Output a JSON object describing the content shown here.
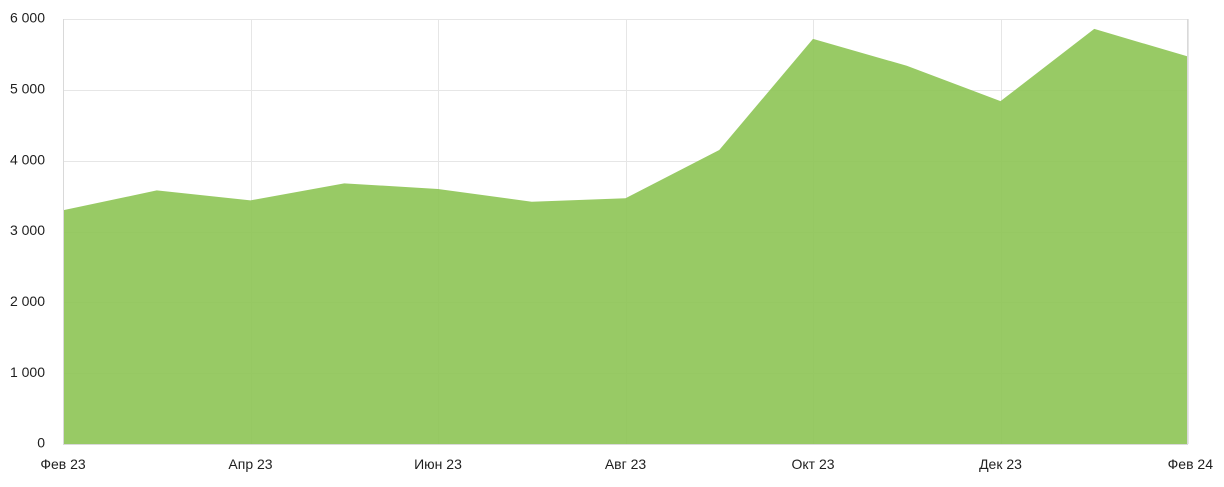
{
  "chart_data": {
    "type": "area",
    "x": [
      "Фев 23",
      "Мар 23",
      "Апр 23",
      "Май 23",
      "Июн 23",
      "Июл 23",
      "Авг 23",
      "Сен 23",
      "Окт 23",
      "Ноя 23",
      "Дек 23",
      "Янв 24",
      "Фев 24"
    ],
    "x_tick_labels": [
      "Фев 23",
      "Апр 23",
      "Июн 23",
      "Авг 23",
      "Окт 23",
      "Дек 23",
      "Фев 24"
    ],
    "series": [
      {
        "values": [
          3300,
          3580,
          3440,
          3680,
          3600,
          3420,
          3470,
          4150,
          5720,
          5340,
          4840,
          5860,
          5470
        ],
        "color": "#8dc454"
      }
    ],
    "ylim": [
      0,
      6000
    ],
    "y_ticks": [
      0,
      1000,
      2000,
      3000,
      4000,
      5000,
      6000
    ],
    "y_tick_labels": [
      "0",
      "1 000",
      "2 000",
      "3 000",
      "4 000",
      "5 000",
      "6 000"
    ],
    "grid": true,
    "legend": "none",
    "title": "",
    "xlabel": "",
    "ylabel": ""
  }
}
